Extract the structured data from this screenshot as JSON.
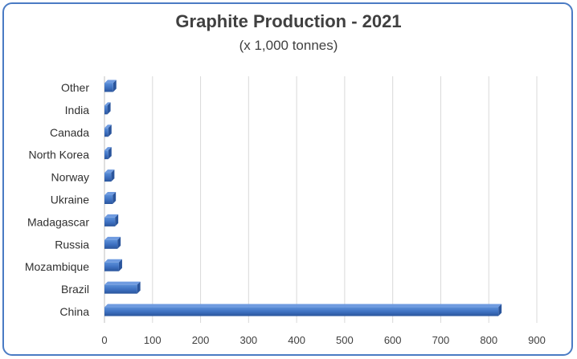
{
  "chart_data": {
    "type": "bar",
    "orientation": "horizontal",
    "title": "Graphite Production - 2021",
    "subtitle": "(x  1,000 tonnes)",
    "categories": [
      "China",
      "Brazil",
      "Mozambique",
      "Russia",
      "Madagascar",
      "Ukraine",
      "Norway",
      "North Korea",
      "Canada",
      "India",
      "Other"
    ],
    "values": [
      820,
      68,
      30,
      27,
      22,
      17,
      14,
      8,
      8,
      6,
      18
    ],
    "xlim": [
      0,
      900
    ],
    "xticks": [
      "0",
      "100",
      "200",
      "300",
      "400",
      "500",
      "600",
      "700",
      "800",
      "900"
    ],
    "grid": true,
    "bar_color": "#3f72c2"
  }
}
